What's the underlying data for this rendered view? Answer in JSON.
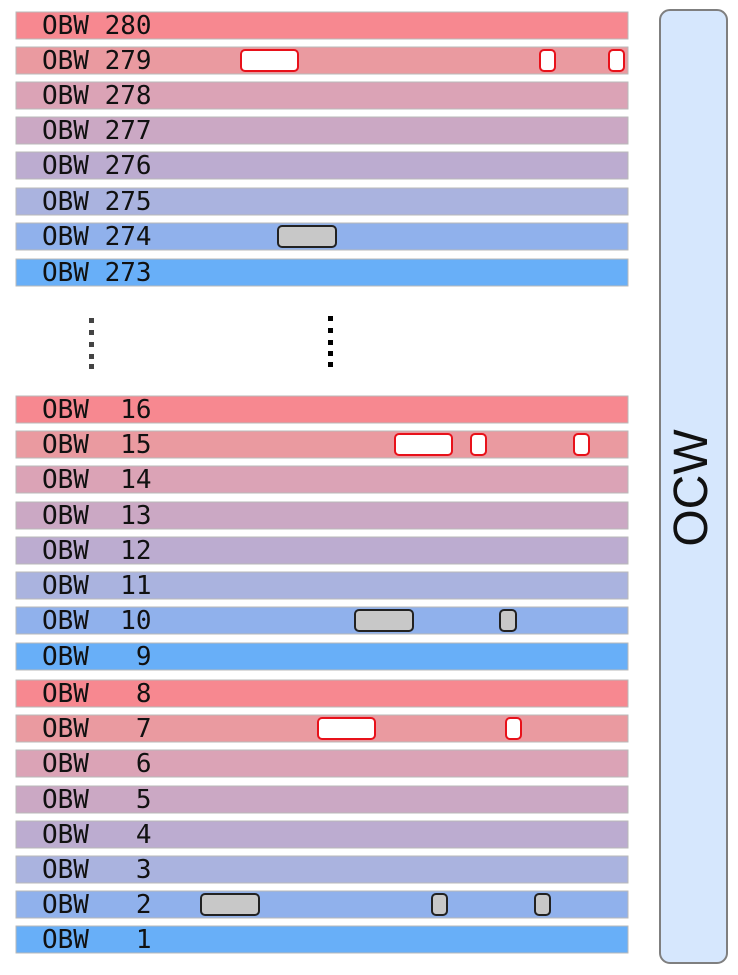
{
  "rows": [
    {
      "label": "OBW 280",
      "color": "#f78890",
      "marks": []
    },
    {
      "label": "OBW 279",
      "color": "#ea9aa0",
      "marks": [
        {
          "kind": "red",
          "x1": 241,
          "x2": 298
        },
        {
          "kind": "red",
          "x1": 540,
          "x2": 555
        },
        {
          "kind": "red",
          "x1": 609,
          "x2": 624
        }
      ]
    },
    {
      "label": "OBW 278",
      "color": "#dba3b6",
      "marks": []
    },
    {
      "label": "OBW 277",
      "color": "#cba8c4",
      "marks": []
    },
    {
      "label": "OBW 276",
      "color": "#bcacd0",
      "marks": []
    },
    {
      "label": "OBW 275",
      "color": "#aab3df",
      "marks": []
    },
    {
      "label": "OBW 274",
      "color": "#90b1ec",
      "marks": [
        {
          "kind": "gray",
          "x1": 278,
          "x2": 336
        }
      ]
    },
    {
      "label": "OBW 273",
      "color": "#68aff8",
      "marks": []
    },
    {
      "label": "OBW  16",
      "color": "#f78890",
      "marks": []
    },
    {
      "label": "OBW  15",
      "color": "#ea9aa0",
      "marks": [
        {
          "kind": "red",
          "x1": 395,
          "x2": 452
        },
        {
          "kind": "red",
          "x1": 471,
          "x2": 486
        },
        {
          "kind": "red",
          "x1": 574,
          "x2": 589
        }
      ]
    },
    {
      "label": "OBW  14",
      "color": "#dba3b6",
      "marks": []
    },
    {
      "label": "OBW  13",
      "color": "#cba8c4",
      "marks": []
    },
    {
      "label": "OBW  12",
      "color": "#bcacd0",
      "marks": []
    },
    {
      "label": "OBW  11",
      "color": "#aab3df",
      "marks": []
    },
    {
      "label": "OBW  10",
      "color": "#90b1ec",
      "marks": [
        {
          "kind": "gray",
          "x1": 355,
          "x2": 413
        },
        {
          "kind": "gray",
          "x1": 500,
          "x2": 516
        }
      ]
    },
    {
      "label": "OBW   9",
      "color": "#68aff8",
      "marks": []
    },
    {
      "label": "OBW   8",
      "color": "#f78890",
      "marks": []
    },
    {
      "label": "OBW   7",
      "color": "#ea9aa0",
      "marks": [
        {
          "kind": "red",
          "x1": 318,
          "x2": 375
        },
        {
          "kind": "red",
          "x1": 506,
          "x2": 521
        }
      ]
    },
    {
      "label": "OBW   6",
      "color": "#dba3b6",
      "marks": []
    },
    {
      "label": "OBW   5",
      "color": "#cba8c4",
      "marks": []
    },
    {
      "label": "OBW   4",
      "color": "#bcacd0",
      "marks": []
    },
    {
      "label": "OBW   3",
      "color": "#aab3df",
      "marks": []
    },
    {
      "label": "OBW   2",
      "color": "#90b1ec",
      "marks": [
        {
          "kind": "gray",
          "x1": 201,
          "x2": 259
        },
        {
          "kind": "gray",
          "x1": 432,
          "x2": 447
        },
        {
          "kind": "gray",
          "x1": 535,
          "x2": 550
        }
      ]
    },
    {
      "label": "OBW   1",
      "color": "#68aff8",
      "marks": []
    }
  ],
  "ocw": {
    "label": "OCW",
    "fill": "#d6e7fd",
    "stroke": "#7f7f7f"
  },
  "styles": {
    "red": {
      "fill": "#ffffff",
      "stroke": "#e8111a"
    },
    "gray": {
      "fill": "#c8c8c8",
      "stroke": "#222222"
    }
  }
}
